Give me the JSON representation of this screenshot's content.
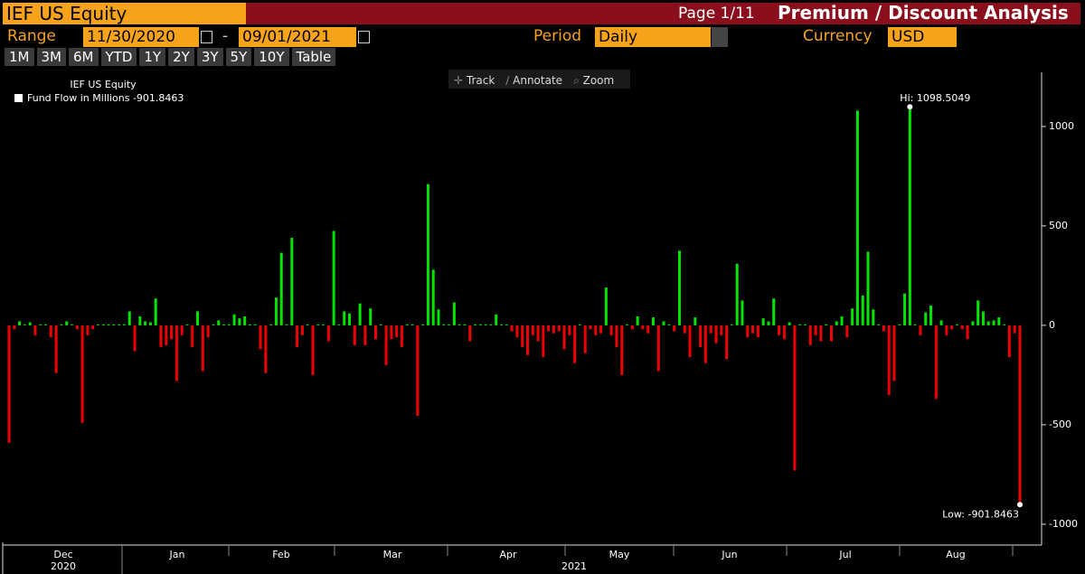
{
  "header": {
    "ticker": "IEF US Equity",
    "page": "Page 1/11",
    "title": "Premium / Discount Analysis"
  },
  "controls": {
    "range_label": "Range",
    "start_date": "11/30/2020",
    "separator": "-",
    "end_date": "09/01/2021",
    "period_label": "Period",
    "period": "Daily",
    "currency_label": "Currency",
    "currency": "USD",
    "buttons": [
      "1M",
      "3M",
      "6M",
      "YTD",
      "1Y",
      "2Y",
      "3Y",
      "5Y",
      "10Y",
      "Table"
    ]
  },
  "toolbar": [
    "Track",
    "Annotate",
    "Zoom"
  ],
  "chart_data": {
    "type": "bar",
    "legend_title": "IEF US Equity",
    "series_name": "Fund Flow in Millions",
    "values": [
      -590,
      -20,
      20,
      0,
      15,
      -50,
      0,
      0,
      -60,
      -240,
      0,
      20,
      0,
      -20,
      -490,
      -50,
      -20,
      0,
      0,
      0,
      0,
      0,
      0,
      70,
      -130,
      45,
      20,
      15,
      135,
      -110,
      -100,
      -70,
      -280,
      -50,
      0,
      -110,
      70,
      -230,
      -60,
      0,
      25,
      0,
      0,
      55,
      35,
      45,
      0,
      0,
      -120,
      -240,
      0,
      140,
      365,
      0,
      440,
      -110,
      -50,
      0,
      -250,
      0,
      0,
      -80,
      475,
      0,
      70,
      60,
      -100,
      110,
      -100,
      85,
      -70,
      0,
      -200,
      -70,
      -60,
      -110,
      0,
      0,
      -455,
      0,
      710,
      280,
      80,
      0,
      0,
      115,
      0,
      0,
      -80,
      0,
      0,
      0,
      0,
      55,
      0,
      0,
      -30,
      -60,
      -110,
      -150,
      -50,
      -80,
      -160,
      -30,
      -40,
      -30,
      -120,
      -50,
      -190,
      0,
      -140,
      -20,
      -50,
      -40,
      190,
      -50,
      -110,
      -250,
      0,
      -20,
      45,
      -20,
      -40,
      40,
      -230,
      20,
      0,
      -30,
      375,
      -40,
      -160,
      40,
      -110,
      -190,
      -40,
      -90,
      -50,
      -170,
      0,
      310,
      125,
      -60,
      -40,
      -60,
      35,
      20,
      135,
      -50,
      -70,
      15,
      -730,
      0,
      0,
      -100,
      -50,
      -80,
      0,
      -80,
      20,
      45,
      -60,
      85,
      1080,
      150,
      370,
      80,
      0,
      -30,
      -350,
      -280,
      0,
      160,
      1098.5049,
      0,
      -50,
      65,
      100,
      -370,
      25,
      -50,
      -20,
      0,
      -20,
      -70,
      20,
      125,
      70,
      20,
      25,
      40,
      0,
      -160,
      -40,
      -901.8463
    ],
    "colors": {
      "positive": "#00e400",
      "negative": "#ee0000"
    },
    "ylim": [
      -1105,
      1295
    ],
    "yticks": [
      -1000,
      -500,
      0,
      500,
      1000
    ],
    "months": [
      "Dec",
      "Jan",
      "Feb",
      "Mar",
      "Apr",
      "May",
      "Jun",
      "Jul",
      "Aug"
    ],
    "years": [
      "2020",
      "2021"
    ],
    "annotations": {
      "high_label": "Hi:",
      "low_label": "Low:"
    }
  }
}
